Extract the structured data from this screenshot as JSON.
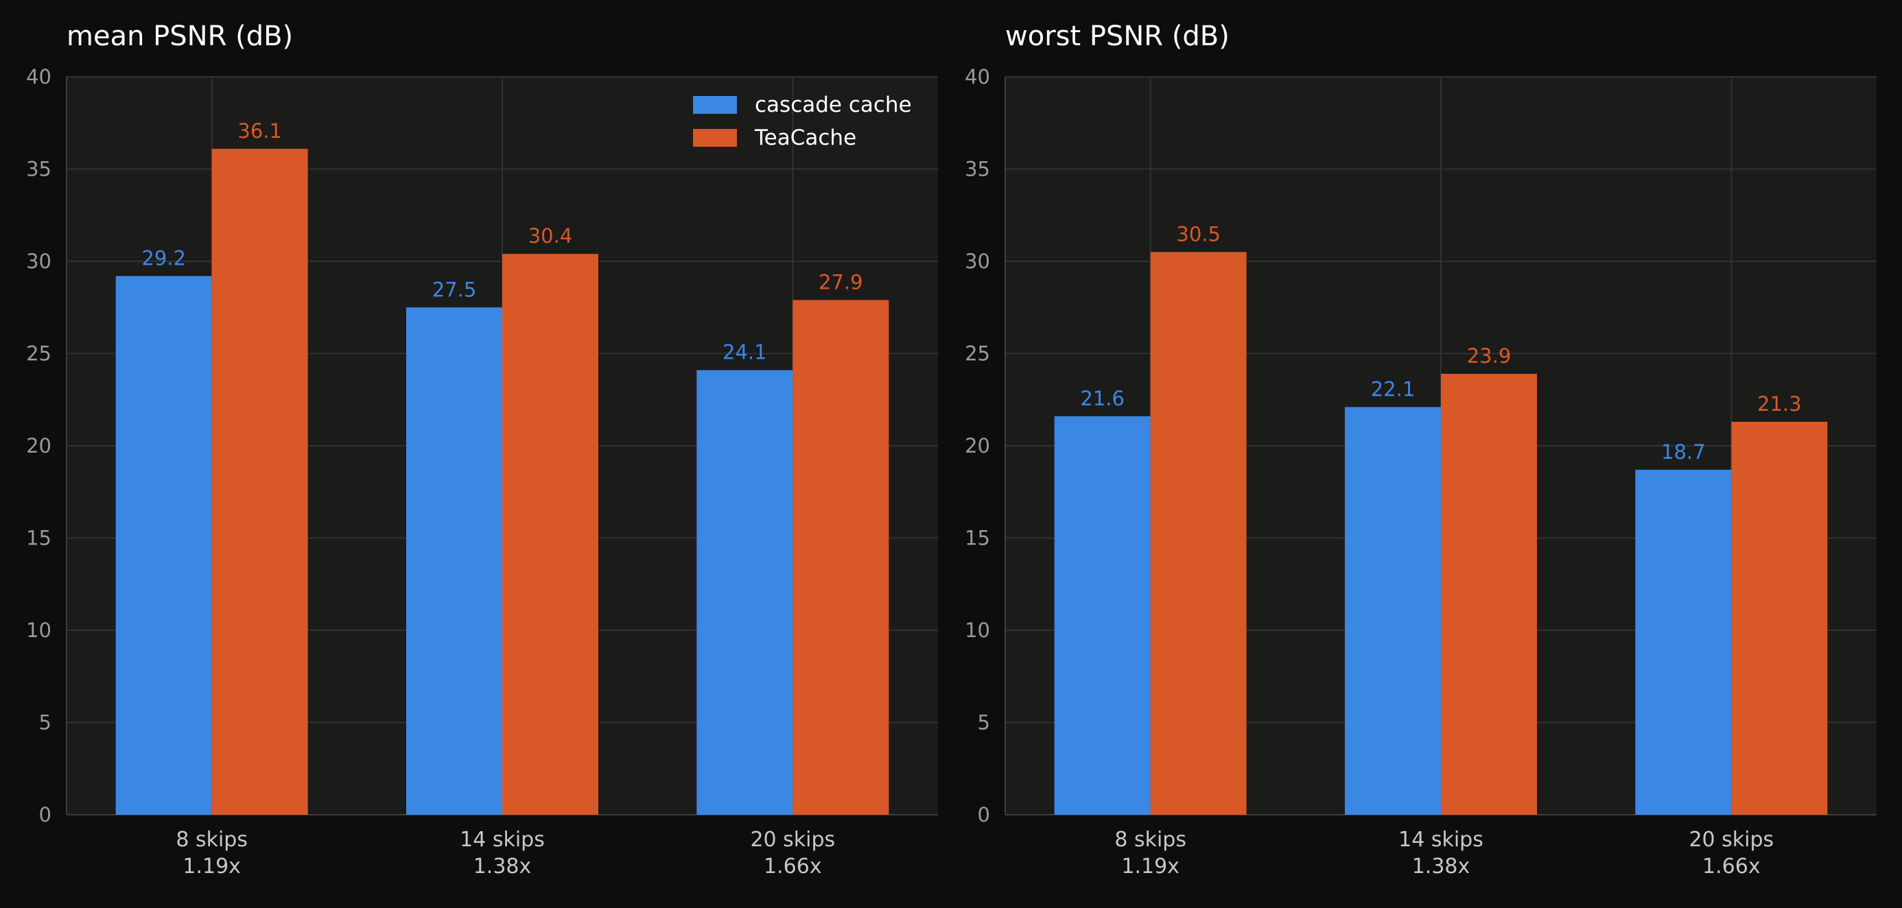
{
  "chart_data": [
    {
      "type": "bar",
      "title": "mean PSNR (dB)",
      "categories": [
        [
          "8 skips",
          "1.19x"
        ],
        [
          "14 skips",
          "1.38x"
        ],
        [
          "20 skips",
          "1.66x"
        ]
      ],
      "series": [
        {
          "name": "cascade cache",
          "color": "#3b87e4",
          "values": [
            29.2,
            27.5,
            24.1
          ]
        },
        {
          "name": "TeaCache",
          "color": "#d95827",
          "values": [
            36.1,
            30.4,
            27.9
          ]
        }
      ],
      "ylim": [
        0,
        40
      ],
      "yticks": [
        0,
        5,
        10,
        15,
        20,
        25,
        30,
        35,
        40
      ],
      "grid": true,
      "legend": "top-right"
    },
    {
      "type": "bar",
      "title": "worst PSNR (dB)",
      "categories": [
        [
          "8 skips",
          "1.19x"
        ],
        [
          "14 skips",
          "1.38x"
        ],
        [
          "20 skips",
          "1.66x"
        ]
      ],
      "series": [
        {
          "name": "cascade cache",
          "color": "#3b87e4",
          "values": [
            21.6,
            22.1,
            18.7
          ]
        },
        {
          "name": "TeaCache",
          "color": "#d95827",
          "values": [
            30.5,
            23.9,
            21.3
          ]
        }
      ],
      "ylim": [
        0,
        40
      ],
      "yticks": [
        0,
        5,
        10,
        15,
        20,
        25,
        30,
        35,
        40
      ],
      "grid": true,
      "legend": "none"
    }
  ]
}
